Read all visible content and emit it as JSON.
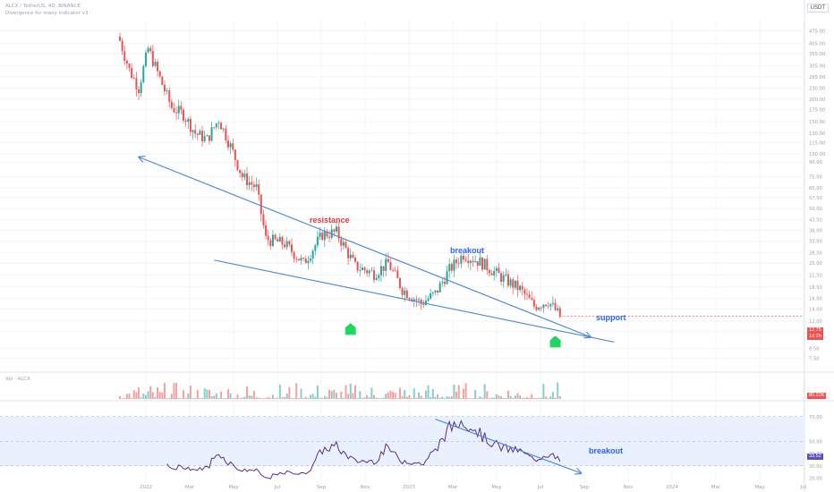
{
  "header": {
    "symbol_line": "ALCX / TetherUS, 4D, BINANCE",
    "indicator_line": "Divergence for many indicator v3",
    "currency_badge": "USDT"
  },
  "volume_pane_label": "Vol · ALCX",
  "annotations": {
    "resistance": "resistance",
    "breakout_price": "breakout",
    "support": "support",
    "breakout_rsi": "breakout"
  },
  "colors": {
    "up": "#26a69a",
    "down": "#ef5350",
    "trendline": "#4a86d9",
    "rsi_line": "#5b2d8e",
    "rsi_band": "#e8f1fd",
    "signal": "#1ed760",
    "resistance_text": "#e53935",
    "blue_text": "#2962ff"
  },
  "price_labels": {
    "last_price": "12.75",
    "countdown": "1d 2h",
    "volume_last": "80.22K",
    "rsi_last": "33.52"
  },
  "chart_data": [
    {
      "type": "candlestick",
      "title": "ALCX / TetherUS, 4D, BINANCE",
      "yscale": "log",
      "y_axis_ticks": [
        475.0,
        405.0,
        355.0,
        305.0,
        265.0,
        230.0,
        200.0,
        175.0,
        150.0,
        130.0,
        115.0,
        100.0,
        90.0,
        75.0,
        65.0,
        57.5,
        50.0,
        43.5,
        38.0,
        33.0,
        28.5,
        25.0,
        21.5,
        18.5,
        16.0,
        14.0,
        12.0,
        10.5,
        8.5,
        7.5
      ],
      "x_axis_ticks": [
        "2022",
        "Mar",
        "May",
        "Jul",
        "Sep",
        "Nov",
        "2023",
        "Mar",
        "May",
        "Jul",
        "Sep",
        "Nov",
        "2024",
        "Mar",
        "May",
        "Jul"
      ],
      "last_price": 12.75,
      "price_path": [
        {
          "t": 0,
          "close": 420
        },
        {
          "t": 4,
          "close": 290
        },
        {
          "t": 8,
          "close": 230
        },
        {
          "t": 12,
          "close": 380
        },
        {
          "t": 17,
          "close": 260
        },
        {
          "t": 22,
          "close": 180
        },
        {
          "t": 27,
          "close": 165
        },
        {
          "t": 32,
          "close": 130
        },
        {
          "t": 37,
          "close": 120
        },
        {
          "t": 42,
          "close": 155
        },
        {
          "t": 47,
          "close": 110
        },
        {
          "t": 52,
          "close": 75
        },
        {
          "t": 58,
          "close": 65
        },
        {
          "t": 62,
          "close": 34
        },
        {
          "t": 70,
          "close": 32
        },
        {
          "t": 78,
          "close": 25
        },
        {
          "t": 86,
          "close": 36
        },
        {
          "t": 92,
          "close": 37
        },
        {
          "t": 100,
          "close": 24
        },
        {
          "t": 108,
          "close": 22
        },
        {
          "t": 114,
          "close": 25
        },
        {
          "t": 120,
          "close": 18
        },
        {
          "t": 128,
          "close": 15
        },
        {
          "t": 134,
          "close": 17
        },
        {
          "t": 140,
          "close": 23
        },
        {
          "t": 146,
          "close": 28
        },
        {
          "t": 154,
          "close": 25
        },
        {
          "t": 162,
          "close": 21
        },
        {
          "t": 170,
          "close": 18
        },
        {
          "t": 176,
          "close": 14.5
        },
        {
          "t": 182,
          "close": 15.5
        },
        {
          "t": 187,
          "close": 12.75
        }
      ],
      "trendlines": [
        {
          "name": "resistance",
          "from": {
            "t": 8,
            "price": 96
          },
          "to": {
            "t": 200,
            "price": 9.8
          }
        },
        {
          "name": "support",
          "from": {
            "t": 40,
            "price": 26
          },
          "to": {
            "t": 210,
            "price": 9.2
          }
        }
      ],
      "signals": [
        {
          "t": 98,
          "price": 10.8,
          "shape": "arrow-up"
        },
        {
          "t": 185,
          "price": 9.2,
          "shape": "arrow-up"
        }
      ]
    },
    {
      "type": "bar",
      "title": "Vol · ALCX",
      "last_value": "80.22K"
    },
    {
      "type": "line",
      "title": "RSI",
      "y_axis_ticks": [
        70.0,
        50.0,
        40.0,
        30.0,
        20.0
      ],
      "band": [
        30,
        70
      ],
      "last_value": 33.52,
      "trendline": {
        "from": {
          "t": 134,
          "value": 68
        },
        "to": {
          "t": 196,
          "value": 24
        }
      }
    }
  ]
}
